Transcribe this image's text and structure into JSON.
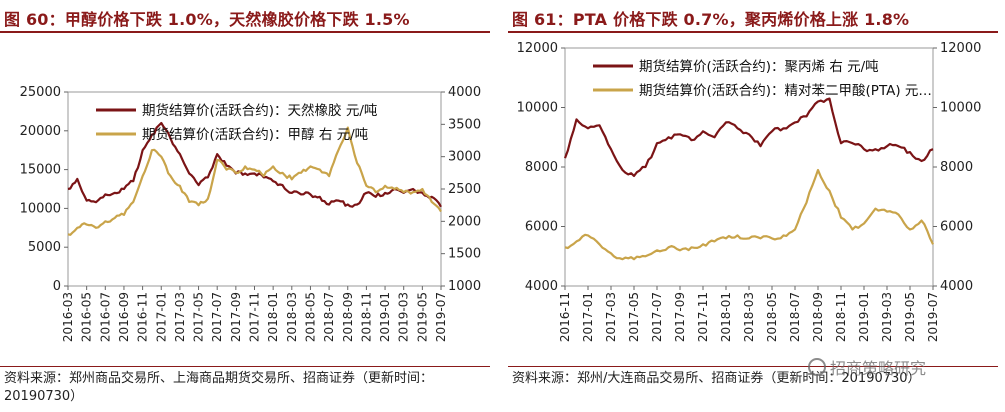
{
  "left": {
    "title": "图 60：甲醇价格下跌 1.0%，天然橡胶价格下跌 1.5%",
    "source": "资料来源：郑州商品交易所、上海商品期货交易所、招商证券（更新时间：20190730）"
  },
  "right": {
    "title": "图 61：PTA 价格下跌 0.7%，聚丙烯价格上涨 1.8%",
    "source": "资料来源：郑州/大连商品交易所、招商证券（更新时间：20190730）"
  },
  "watermark": "招商策略研究",
  "colors": {
    "series1": "#7b1416",
    "series2": "#c9a44a",
    "accent": "#8a1a1a"
  },
  "chart_data": [
    {
      "type": "line",
      "x": [
        "2016-03",
        "2016-04",
        "2016-05",
        "2016-06",
        "2016-07",
        "2016-08",
        "2016-09",
        "2016-10",
        "2016-11",
        "2016-12",
        "2017-01",
        "2017-02",
        "2017-03",
        "2017-04",
        "2017-05",
        "2017-06",
        "2017-07",
        "2017-08",
        "2017-09",
        "2017-10",
        "2017-11",
        "2017-12",
        "2018-01",
        "2018-02",
        "2018-03",
        "2018-04",
        "2018-05",
        "2018-06",
        "2018-07",
        "2018-08",
        "2018-09",
        "2018-10",
        "2018-11",
        "2018-12",
        "2019-01",
        "2019-02",
        "2019-03",
        "2019-04",
        "2019-05",
        "2019-06",
        "2019-07"
      ],
      "x_ticks": [
        "2016-03",
        "2016-05",
        "2016-07",
        "2016-09",
        "2016-11",
        "2017-01",
        "2017-03",
        "2017-05",
        "2017-07",
        "2017-09",
        "2017-11",
        "2018-01",
        "2018-03",
        "2018-05",
        "2018-07",
        "2018-09",
        "2018-11",
        "2019-01",
        "2019-03",
        "2019-05",
        "2019-07"
      ],
      "series": [
        {
          "name": "期货结算价(活跃合约)：天然橡胶 元/吨",
          "axis": "left",
          "values": [
            12500,
            13800,
            11000,
            10800,
            11800,
            12000,
            12500,
            13500,
            17500,
            19500,
            21000,
            19000,
            17000,
            14500,
            13000,
            14000,
            17000,
            15500,
            14500,
            14500,
            14500,
            14000,
            13500,
            13000,
            12000,
            11800,
            11800,
            11500,
            10500,
            11000,
            10500,
            10500,
            12000,
            11500,
            12000,
            12500,
            12000,
            12500,
            12000,
            11500,
            10200
          ]
        },
        {
          "name": "期货结算价(活跃合约)：甲醇 右 元/吨",
          "axis": "right",
          "values": [
            1800,
            1900,
            1950,
            1900,
            2000,
            2050,
            2100,
            2300,
            2700,
            3100,
            3000,
            2700,
            2550,
            2300,
            2250,
            2350,
            2950,
            2800,
            2750,
            2850,
            2800,
            2700,
            2850,
            2750,
            2650,
            2750,
            2850,
            2800,
            2700,
            3100,
            3450,
            2900,
            2550,
            2450,
            2550,
            2500,
            2450,
            2450,
            2500,
            2300,
            2150
          ]
        }
      ],
      "ylim": [
        0,
        25000
      ],
      "y_ticks": [
        0,
        5000,
        10000,
        15000,
        20000,
        25000
      ],
      "y2lim": [
        1000,
        4000
      ],
      "y2_ticks": [
        1000,
        1500,
        2000,
        2500,
        3000,
        3500,
        4000
      ],
      "legend": "top-left"
    },
    {
      "type": "line",
      "x": [
        "2016-11",
        "2016-12",
        "2017-01",
        "2017-02",
        "2017-03",
        "2017-04",
        "2017-05",
        "2017-06",
        "2017-07",
        "2017-08",
        "2017-09",
        "2017-10",
        "2017-11",
        "2017-12",
        "2018-01",
        "2018-02",
        "2018-03",
        "2018-04",
        "2018-05",
        "2018-06",
        "2018-07",
        "2018-08",
        "2018-09",
        "2018-10",
        "2018-11",
        "2018-12",
        "2019-01",
        "2019-02",
        "2019-03",
        "2019-04",
        "2019-05",
        "2019-06",
        "2019-07"
      ],
      "x_ticks": [
        "2016-11",
        "2017-01",
        "2017-03",
        "2017-05",
        "2017-07",
        "2017-09",
        "2017-11",
        "2018-01",
        "2018-03",
        "2018-05",
        "2018-07",
        "2018-09",
        "2018-11",
        "2019-01",
        "2019-03",
        "2019-05",
        "2019-07"
      ],
      "series": [
        {
          "name": "期货结算价(活跃合约)：聚丙烯 右 元/吨",
          "axis": "right",
          "values": [
            8300,
            9600,
            9300,
            9400,
            8600,
            7900,
            7700,
            8000,
            8800,
            9000,
            9100,
            8900,
            9200,
            9000,
            9500,
            9300,
            9100,
            8700,
            9200,
            9300,
            9500,
            9700,
            10200,
            10300,
            8800,
            8800,
            8600,
            8600,
            8700,
            8700,
            8500,
            8200,
            8600
          ]
        },
        {
          "name": "期货结算价(活跃合约)：精对苯二甲酸(PTA) 元…",
          "axis": "left",
          "values": [
            5300,
            5500,
            5700,
            5400,
            5100,
            4900,
            4900,
            5000,
            5200,
            5300,
            5200,
            5300,
            5400,
            5500,
            5600,
            5700,
            5600,
            5600,
            5600,
            5700,
            5900,
            6800,
            7900,
            7200,
            6300,
            5900,
            6100,
            6600,
            6500,
            6400,
            5900,
            6200,
            5400
          ]
        }
      ],
      "ylim": [
        4000,
        12000
      ],
      "y_ticks": [
        4000,
        6000,
        8000,
        10000,
        12000
      ],
      "y2lim": [
        4000,
        12000
      ],
      "y2_ticks": [
        4000,
        6000,
        8000,
        10000,
        12000
      ],
      "legend": "top-left"
    }
  ]
}
